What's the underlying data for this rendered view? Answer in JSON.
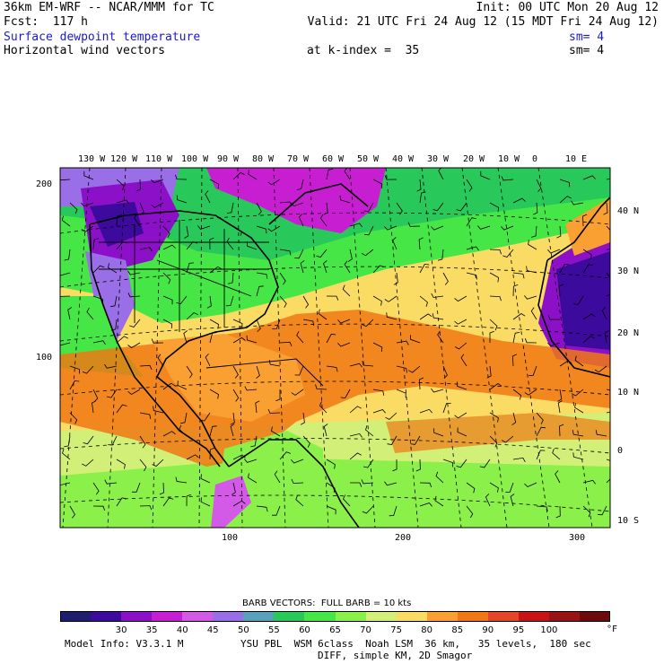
{
  "header": {
    "model": "36km EM-WRF -- NCAR/MMM for TC",
    "init": "Init: 00 UTC Mon 20 Aug 12",
    "fcst": "Fcst:  117 h",
    "valid": "Valid: 21 UTC Fri 24 Aug 12 (15 MDT Fri 24 Aug 12)",
    "field1": "Surface dewpoint temperature",
    "field1_sm": "sm= 4",
    "field2": "Horizontal wind vectors",
    "kindex": "at k-index =  35",
    "field2_sm": "sm= 4"
  },
  "map": {
    "lon_labels": [
      "130 W",
      "120 W",
      "110 W",
      "100 W",
      "90 W",
      "80 W",
      "70 W",
      "60 W",
      "50 W",
      "40 W",
      "30 W",
      "20 W",
      "10 W",
      "0",
      "10 E"
    ],
    "lat_labels": [
      "40 N",
      "30 N",
      "20 N",
      "10 N",
      "0",
      "10 S"
    ],
    "y_ticks": [
      "200",
      "100"
    ],
    "x_ticks": [
      "100",
      "200",
      "300"
    ]
  },
  "legend": {
    "barb_note": "BARB VECTORS:  FULL BARB = 10 kts",
    "levels": [
      "30",
      "35",
      "40",
      "45",
      "50",
      "55",
      "60",
      "65",
      "70",
      "75",
      "80",
      "85",
      "90",
      "95",
      "100"
    ],
    "unit": "°F",
    "colors": [
      "#1e1e6e",
      "#3c0a9c",
      "#8c10c8",
      "#c81ed2",
      "#d25ae6",
      "#9a6ee6",
      "#5a9fbc",
      "#28c85a",
      "#46e646",
      "#8cf04b",
      "#d2f078",
      "#fadc64",
      "#faa032",
      "#f07814",
      "#e64628",
      "#c81414",
      "#961414",
      "#6e0a0a"
    ]
  },
  "footer": {
    "model_info": "Model Info: V3.3.1 M",
    "physics": "YSU PBL  WSM 6class  Noah LSM  36 km,   35 levels,  180 sec",
    "diff": "DIFF, simple KM, 2D Smagor"
  }
}
